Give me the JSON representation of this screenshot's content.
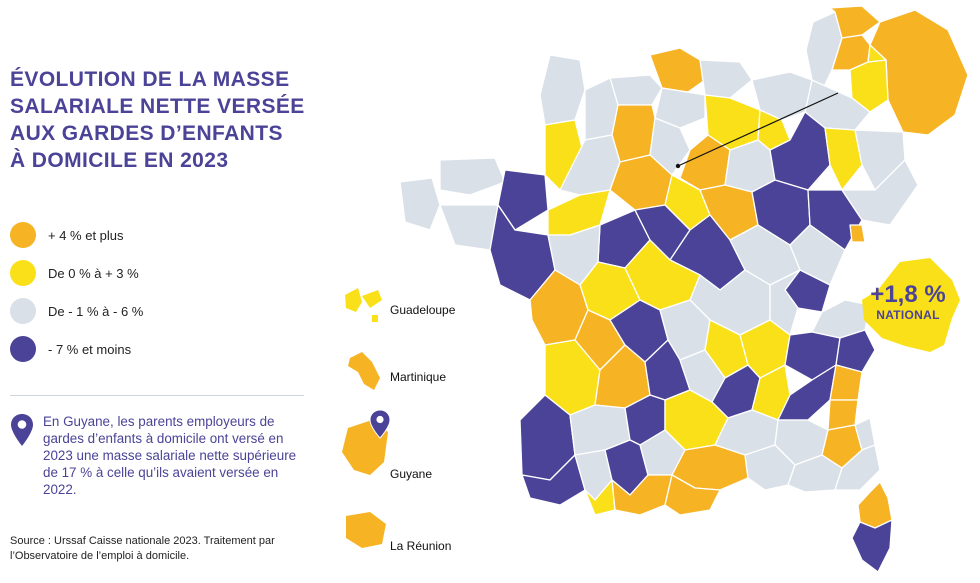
{
  "title": {
    "lines": [
      "ÉVOLUTION DE LA MASSE",
      "SALARIALE NETTE VERSÉE",
      "AUX GARDES D’ENFANTS",
      "À DOMICILE EN 2023"
    ]
  },
  "colors": {
    "orange": "#f6b324",
    "yellow": "#fae018",
    "grey": "#d9e0e8",
    "purple": "#4b4397",
    "border": "#ffffff"
  },
  "legend": [
    {
      "label": "+ 4 % et plus",
      "color": "#f6b324"
    },
    {
      "label": "De 0 % à + 3 %",
      "color": "#fae018"
    },
    {
      "label": "De - 1 % à - 6 %",
      "color": "#d9e0e8"
    },
    {
      "label": "- 7 % et moins",
      "color": "#4b4397"
    }
  ],
  "note": {
    "icon": "map-pin-icon",
    "text": "En Guyane, les parents employeurs de gardes d’enfants à domicile ont versé en 2023 une masse salariale nette supérieure de 17 % à celle qu’ils avaient versée en 2022."
  },
  "source": "Source : Urssaf Caisse nationale 2023. Traitement par l’Observatoire de l’emploi à domicile.",
  "national": {
    "value": "+1,8 %",
    "label": "NATIONAL"
  },
  "overseas": [
    {
      "name": "Guadeloupe",
      "category": "yellow"
    },
    {
      "name": "Martinique",
      "category": "orange"
    },
    {
      "name": "Guyane",
      "category": "orange"
    },
    {
      "name": "La Réunion",
      "category": "orange"
    }
  ]
}
